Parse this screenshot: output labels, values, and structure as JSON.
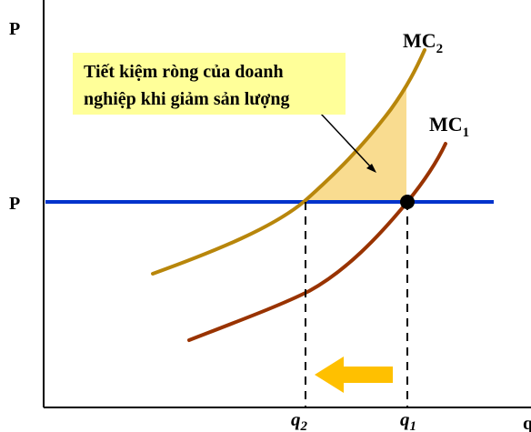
{
  "diagram": {
    "y_axis_label": "P",
    "price_label": "P",
    "x_axis_label": "q",
    "mc1_label": {
      "base": "MC",
      "sub": "1"
    },
    "mc2_label": {
      "base": "MC",
      "sub": "2"
    },
    "q1_label": {
      "base": "q",
      "sub": "1"
    },
    "q2_label": {
      "base": "q",
      "sub": "2"
    },
    "annotation_line1": "Tiết kiệm ròng của doanh",
    "annotation_line2": "nghiệp khi giảm sản lượng"
  },
  "colors": {
    "price_line": "#0033cc",
    "mc1_curve": "#993300",
    "mc2_curve": "#b8860b",
    "savings_area": "#f9dc90",
    "annotation_bg": "#ffff99",
    "arrow": "#ffc000",
    "axes": "#000000"
  },
  "icons": {
    "direction_arrow": "left-arrow-icon",
    "equilibrium_point": "dot-icon"
  }
}
